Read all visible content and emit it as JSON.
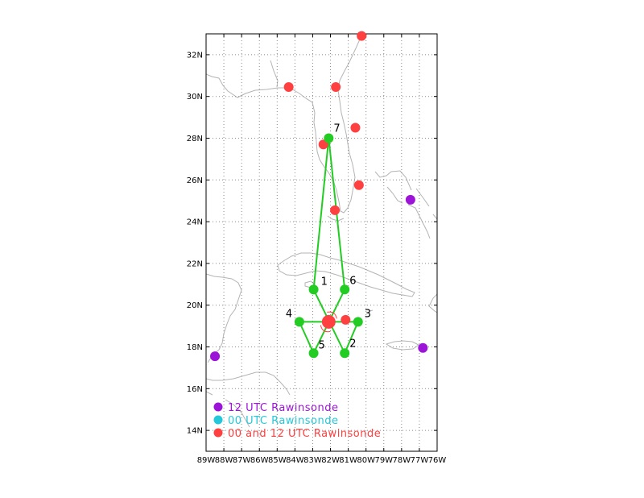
{
  "chart_data": {
    "type": "scatter",
    "title": "",
    "xlabel": "",
    "ylabel": "",
    "xlim": [
      -89,
      -76
    ],
    "ylim": [
      13,
      33
    ],
    "grid": true,
    "x_tick_labels": [
      "89W",
      "88W",
      "87W",
      "86W",
      "85W",
      "84W",
      "83W",
      "82W",
      "81W",
      "80W",
      "79W",
      "78W",
      "77W",
      "76W"
    ],
    "y_tick_labels": [
      "14N",
      "16N",
      "18N",
      "20N",
      "22N",
      "24N",
      "26N",
      "28N",
      "30N",
      "32N"
    ],
    "y_tick_values": [
      14,
      16,
      18,
      20,
      22,
      24,
      26,
      28,
      30,
      32
    ],
    "legend": {
      "placement": "bottom-left",
      "items": [
        {
          "label": "12 UTC Rawinsonde",
          "color": "#9b14d8"
        },
        {
          "label": "00 UTC Rawinsonde",
          "color": "#25c8d8"
        },
        {
          "label": "00 and 12 UTC Rawinsonde",
          "color": "#ff4040"
        }
      ]
    },
    "rawinsonde_12utc": [
      {
        "lon": -77.5,
        "lat": 25.05
      },
      {
        "lon": -76.8,
        "lat": 17.95
      },
      {
        "lon": -88.5,
        "lat": 17.55
      }
    ],
    "rawinsonde_00_12utc": [
      {
        "lon": -80.25,
        "lat": 32.9
      },
      {
        "lon": -84.35,
        "lat": 30.45
      },
      {
        "lon": -81.7,
        "lat": 30.45
      },
      {
        "lon": -80.6,
        "lat": 28.5
      },
      {
        "lon": -82.4,
        "lat": 27.7
      },
      {
        "lon": -80.4,
        "lat": 25.75
      },
      {
        "lon": -81.75,
        "lat": 24.55
      },
      {
        "lon": -81.15,
        "lat": 19.3
      }
    ],
    "storm_center": {
      "lon": -82.1,
      "lat": 19.2
    },
    "flight_track": {
      "color": "#22cc22",
      "points": [
        {
          "id": "1",
          "lon": -82.95,
          "lat": 20.75
        },
        {
          "id": "2",
          "lon": -81.2,
          "lat": 17.7
        },
        {
          "id": "3",
          "lon": -80.45,
          "lat": 19.2
        },
        {
          "id": "4",
          "lon": -83.75,
          "lat": 19.2
        },
        {
          "id": "5",
          "lon": -82.95,
          "lat": 17.7
        },
        {
          "id": "6",
          "lon": -81.2,
          "lat": 20.75
        },
        {
          "id": "7",
          "lon": -82.1,
          "lat": 28.0
        }
      ],
      "path_order": [
        "1",
        "2",
        "3",
        "4",
        "5",
        "6",
        "7",
        "1"
      ]
    }
  }
}
